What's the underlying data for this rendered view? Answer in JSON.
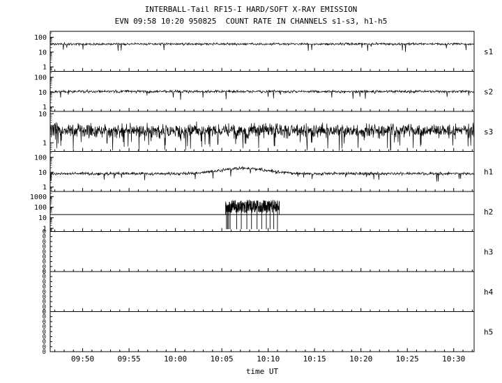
{
  "title": "INTERBALL-Tail RF15-I HARD/SOFT X-RAY EMISSION",
  "subtitle": "EVN 09:58 10:20 950825  COUNT RATE IN CHANNELS s1-s3, h1-h5",
  "xlabel": "time UT",
  "colors": {
    "axis": "#000000",
    "background": "#ffffff"
  },
  "chart_data": {
    "type": "line",
    "title": "INTERBALL-Tail RF15-I HARD/SOFT X-RAY EMISSION",
    "subtitle": "EVN 09:58 10:20 950825  COUNT RATE IN CHANNELS s1-s3, h1-h5",
    "xlabel": "time UT",
    "x_axis": {
      "start_min": 586.5,
      "end_min": 632.2,
      "minor_tick_min": 1,
      "ticks": [
        {
          "t": 590,
          "label": "09:50"
        },
        {
          "t": 595,
          "label": "09:55"
        },
        {
          "t": 600,
          "label": "10:00"
        },
        {
          "t": 605,
          "label": "10:05"
        },
        {
          "t": 610,
          "label": "10:10"
        },
        {
          "t": 615,
          "label": "10:15"
        },
        {
          "t": 620,
          "label": "10:20"
        },
        {
          "t": 625,
          "label": "10:25"
        },
        {
          "t": 630,
          "label": "10:30"
        }
      ]
    },
    "panels": [
      {
        "label": "s1",
        "type": "noisy",
        "scale": "log",
        "ymin": 0.5,
        "ymax": 250,
        "yticks": [
          1,
          10,
          100
        ],
        "baseline": 35,
        "noise_dex": 0.11,
        "dip_prob": 0.012,
        "dip_depth": 2.2,
        "samples": 1100,
        "seed": 11
      },
      {
        "label": "s2",
        "type": "noisy",
        "scale": "log",
        "ymin": 0.5,
        "ymax": 250,
        "yticks": [
          1,
          10,
          100
        ],
        "baseline": 11,
        "noise_dex": 0.13,
        "dip_prob": 0.012,
        "dip_depth": 2.0,
        "samples": 1100,
        "seed": 22
      },
      {
        "label": "s3",
        "type": "noisy",
        "scale": "log",
        "ymin": 0.5,
        "ymax": 12,
        "yticks": [
          1,
          10
        ],
        "baseline": 2.6,
        "noise_dex": 0.34,
        "dip_prob": 0.05,
        "dip_depth": 2.5,
        "samples": 1400,
        "seed": 33,
        "spike_down": {
          "t": 623.2,
          "v": 0.55
        }
      },
      {
        "label": "h1",
        "type": "noisy",
        "scale": "log",
        "ymin": 0.5,
        "ymax": 250,
        "yticks": [
          1,
          10,
          100
        ],
        "baseline": 8,
        "noise_dex": 0.15,
        "dip_prob": 0.02,
        "dip_depth": 1.8,
        "samples": 1100,
        "seed": 44,
        "bump": {
          "center": 607.3,
          "sigma": 2.2,
          "factor": 2.3
        }
      },
      {
        "label": "h2",
        "type": "flat_burst",
        "scale": "log",
        "ymin": 0.5,
        "ymax": 3000,
        "yticks": [
          1,
          10,
          100,
          1000
        ],
        "baseline": 20,
        "seed": 55,
        "burst": {
          "t0": 605.4,
          "t1": 611.2,
          "log_lo": 1.45,
          "log_hi": 2.68,
          "samples": 300,
          "drops": [
            605.5,
            605.62,
            605.74,
            605.9,
            606.6,
            607.1,
            607.7,
            608.2,
            608.8,
            609.3,
            609.8,
            610.2,
            610.6,
            611.0
          ],
          "drop_top": 160,
          "drop_bottom": 0.85
        }
      },
      {
        "label": "h3",
        "type": "zero",
        "zero_count": 9,
        "value": 0
      },
      {
        "label": "h4",
        "type": "zero",
        "zero_count": 9,
        "value": 0
      },
      {
        "label": "h5",
        "type": "zero",
        "zero_count": 9,
        "value": 0
      }
    ]
  }
}
